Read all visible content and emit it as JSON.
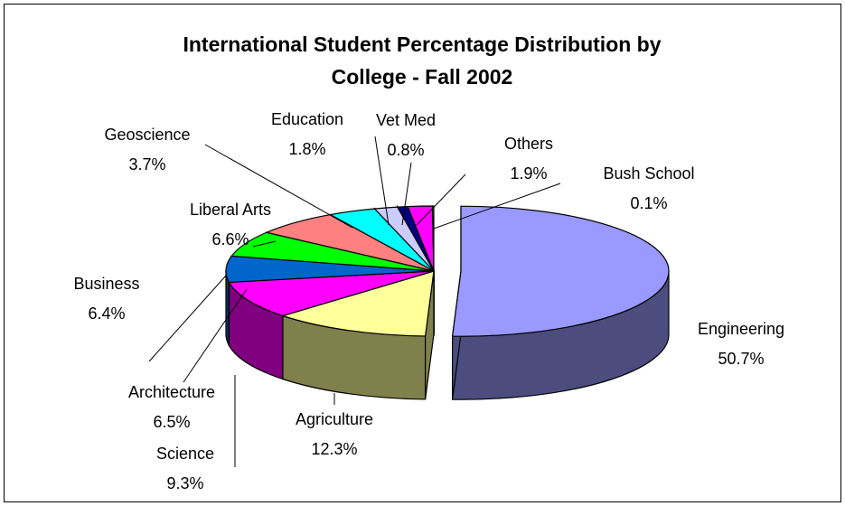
{
  "chart_data": {
    "type": "pie",
    "title": "International Student Percentage Distribution by College - Fall 2002",
    "title_lines": [
      "International Student Percentage Distribution by",
      "College -  Fall 2002"
    ],
    "slices": [
      {
        "label": "Engineering",
        "value": 50.7,
        "value_text": "50.7%",
        "color": "#9999ff",
        "side_color": "#4c4c7f",
        "exploded": true
      },
      {
        "label": "Agriculture",
        "value": 12.3,
        "value_text": "12.3%",
        "color": "#ffff99",
        "side_color": "#80804c"
      },
      {
        "label": "Science",
        "value": 9.3,
        "value_text": "9.3%",
        "color": "#ff00ff",
        "side_color": "#800080"
      },
      {
        "label": "Architecture",
        "value": 6.5,
        "value_text": "6.5%",
        "color": "#0066cc",
        "side_color": "#003366"
      },
      {
        "label": "Business",
        "value": 6.4,
        "value_text": "6.4%",
        "color": "#00ff00",
        "side_color": "#008000"
      },
      {
        "label": "Liberal Arts",
        "value": 6.6,
        "value_text": "6.6%",
        "color": "#ff8080",
        "side_color": "#804040"
      },
      {
        "label": "Geoscience",
        "value": 3.7,
        "value_text": "3.7%",
        "color": "#00ffff",
        "side_color": "#008080"
      },
      {
        "label": "Education",
        "value": 1.8,
        "value_text": "1.8%",
        "color": "#ccccff",
        "side_color": "#666680"
      },
      {
        "label": "Vet Med",
        "value": 0.8,
        "value_text": "0.8%",
        "color": "#000080",
        "side_color": "#000040"
      },
      {
        "label": "Others",
        "value": 1.9,
        "value_text": "1.9%",
        "color": "#ff00ff",
        "side_color": "#800080"
      },
      {
        "label": "Bush School",
        "value": 0.1,
        "value_text": "0.1%",
        "color": "#ffff00",
        "side_color": "#808000"
      }
    ]
  }
}
